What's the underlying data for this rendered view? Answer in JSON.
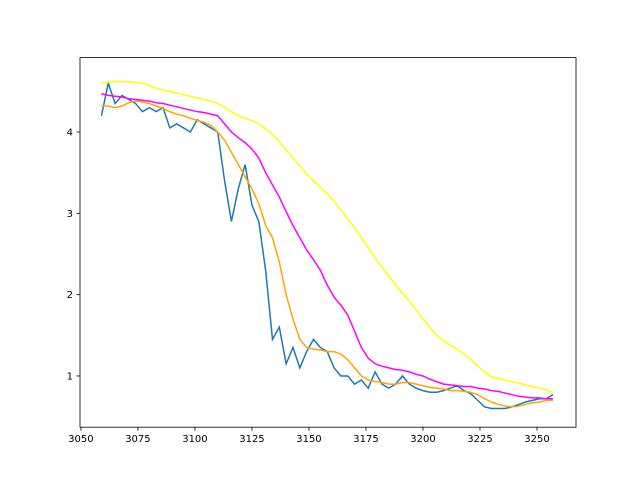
{
  "chart_data": {
    "type": "line",
    "x": [
      3059,
      3062,
      3065,
      3068,
      3071,
      3074,
      3077,
      3080,
      3083,
      3086,
      3089,
      3092,
      3095,
      3098,
      3101,
      3104,
      3107,
      3110,
      3113,
      3116,
      3119,
      3122,
      3125,
      3128,
      3131,
      3134,
      3137,
      3140,
      3143,
      3146,
      3149,
      3152,
      3155,
      3158,
      3161,
      3164,
      3167,
      3170,
      3173,
      3176,
      3179,
      3182,
      3185,
      3188,
      3191,
      3194,
      3197,
      3200,
      3203,
      3206,
      3209,
      3212,
      3215,
      3218,
      3221,
      3224,
      3227,
      3230,
      3233,
      3236,
      3239,
      3242,
      3245,
      3248,
      3251,
      3254,
      3257
    ],
    "series": [
      {
        "color": "#1f77b4",
        "values": [
          4.2,
          4.6,
          4.35,
          4.45,
          4.4,
          4.35,
          4.25,
          4.3,
          4.25,
          4.3,
          4.05,
          4.1,
          4.05,
          4.0,
          4.15,
          4.1,
          4.05,
          4.0,
          3.4,
          2.9,
          3.3,
          3.6,
          3.1,
          2.9,
          2.3,
          1.45,
          1.6,
          1.15,
          1.35,
          1.1,
          1.3,
          1.45,
          1.35,
          1.3,
          1.1,
          1.0,
          1.0,
          0.9,
          0.95,
          0.85,
          1.05,
          0.9,
          0.85,
          0.9,
          1.0,
          0.9,
          0.85,
          0.82,
          0.8,
          0.8,
          0.82,
          0.85,
          0.88,
          0.82,
          0.78,
          0.7,
          0.62,
          0.6,
          0.6,
          0.6,
          0.62,
          0.65,
          0.68,
          0.7,
          0.72,
          0.72,
          0.77
        ]
      },
      {
        "color": "#ffa500",
        "values": [
          4.32,
          4.32,
          4.3,
          4.32,
          4.36,
          4.38,
          4.37,
          4.35,
          4.32,
          4.29,
          4.25,
          4.22,
          4.2,
          4.17,
          4.14,
          4.12,
          4.08,
          4.0,
          3.9,
          3.75,
          3.6,
          3.45,
          3.3,
          3.12,
          2.85,
          2.7,
          2.4,
          2.0,
          1.7,
          1.45,
          1.35,
          1.33,
          1.32,
          1.3,
          1.3,
          1.27,
          1.2,
          1.1,
          1.0,
          0.95,
          0.93,
          0.92,
          0.9,
          0.9,
          0.92,
          0.92,
          0.9,
          0.88,
          0.86,
          0.85,
          0.84,
          0.82,
          0.82,
          0.81,
          0.8,
          0.77,
          0.72,
          0.68,
          0.65,
          0.63,
          0.62,
          0.63,
          0.65,
          0.67,
          0.68,
          0.7,
          0.7
        ]
      },
      {
        "color": "#ff00ff",
        "values": [
          4.47,
          4.45,
          4.44,
          4.43,
          4.41,
          4.4,
          4.39,
          4.38,
          4.36,
          4.35,
          4.33,
          4.31,
          4.29,
          4.27,
          4.25,
          4.24,
          4.22,
          4.2,
          4.1,
          4.0,
          3.93,
          3.87,
          3.79,
          3.68,
          3.5,
          3.35,
          3.2,
          3.02,
          2.85,
          2.7,
          2.55,
          2.43,
          2.3,
          2.12,
          1.97,
          1.87,
          1.75,
          1.55,
          1.35,
          1.22,
          1.15,
          1.12,
          1.1,
          1.08,
          1.07,
          1.05,
          1.02,
          1.0,
          0.96,
          0.93,
          0.9,
          0.89,
          0.88,
          0.87,
          0.87,
          0.85,
          0.84,
          0.82,
          0.81,
          0.79,
          0.77,
          0.75,
          0.74,
          0.73,
          0.73,
          0.72,
          0.72
        ]
      },
      {
        "color": "#ffff00",
        "values": [
          4.6,
          4.61,
          4.62,
          4.62,
          4.62,
          4.61,
          4.6,
          4.57,
          4.54,
          4.52,
          4.5,
          4.48,
          4.46,
          4.44,
          4.42,
          4.4,
          4.38,
          4.35,
          4.3,
          4.25,
          4.2,
          4.17,
          4.14,
          4.1,
          4.04,
          3.97,
          3.88,
          3.78,
          3.68,
          3.58,
          3.48,
          3.4,
          3.32,
          3.24,
          3.15,
          3.04,
          2.93,
          2.82,
          2.7,
          2.58,
          2.45,
          2.34,
          2.23,
          2.12,
          2.02,
          1.92,
          1.81,
          1.7,
          1.6,
          1.5,
          1.43,
          1.38,
          1.33,
          1.27,
          1.2,
          1.12,
          1.05,
          0.99,
          0.97,
          0.95,
          0.93,
          0.91,
          0.89,
          0.87,
          0.85,
          0.83,
          0.8
        ]
      }
    ],
    "xlim": [
      3049.6,
      3267.1
    ],
    "xticks": [
      3050,
      3075,
      3100,
      3125,
      3150,
      3175,
      3200,
      3225,
      3250
    ],
    "ylim": [
      0.37,
      4.915
    ],
    "yticks": [
      1,
      2,
      3,
      4
    ]
  }
}
